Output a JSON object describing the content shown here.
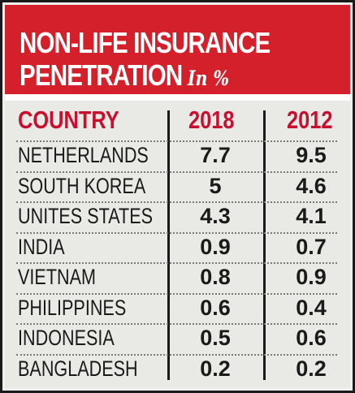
{
  "chart_data": {
    "type": "table",
    "title_line1": "NON-LIFE INSURANCE",
    "title_line2": "PENETRATION",
    "unit_label": "In %",
    "columns": [
      "COUNTRY",
      "2018",
      "2012"
    ],
    "rows": [
      {
        "country": "NETHERLANDS",
        "v2018": "7.7",
        "v2012": "9.5"
      },
      {
        "country": "SOUTH KOREA",
        "v2018": "5",
        "v2012": "4.6"
      },
      {
        "country": "UNITES STATES",
        "v2018": "4.3",
        "v2012": "4.1"
      },
      {
        "country": "INDIA",
        "v2018": "0.9",
        "v2012": "0.7"
      },
      {
        "country": "VIETNAM",
        "v2018": "0.8",
        "v2012": "0.9"
      },
      {
        "country": "PHILIPPINES",
        "v2018": "0.6",
        "v2012": "0.4"
      },
      {
        "country": "INDONESIA",
        "v2018": "0.5",
        "v2012": "0.6"
      },
      {
        "country": "BANGLADESH",
        "v2018": "0.2",
        "v2012": "0.2"
      }
    ]
  },
  "colors": {
    "header_bg": "#d4202a",
    "header_text": "#ffffff",
    "column_header_text": "#c8102e",
    "body_text": "#1a1a1a",
    "table_bg": "#e9e9e6"
  }
}
